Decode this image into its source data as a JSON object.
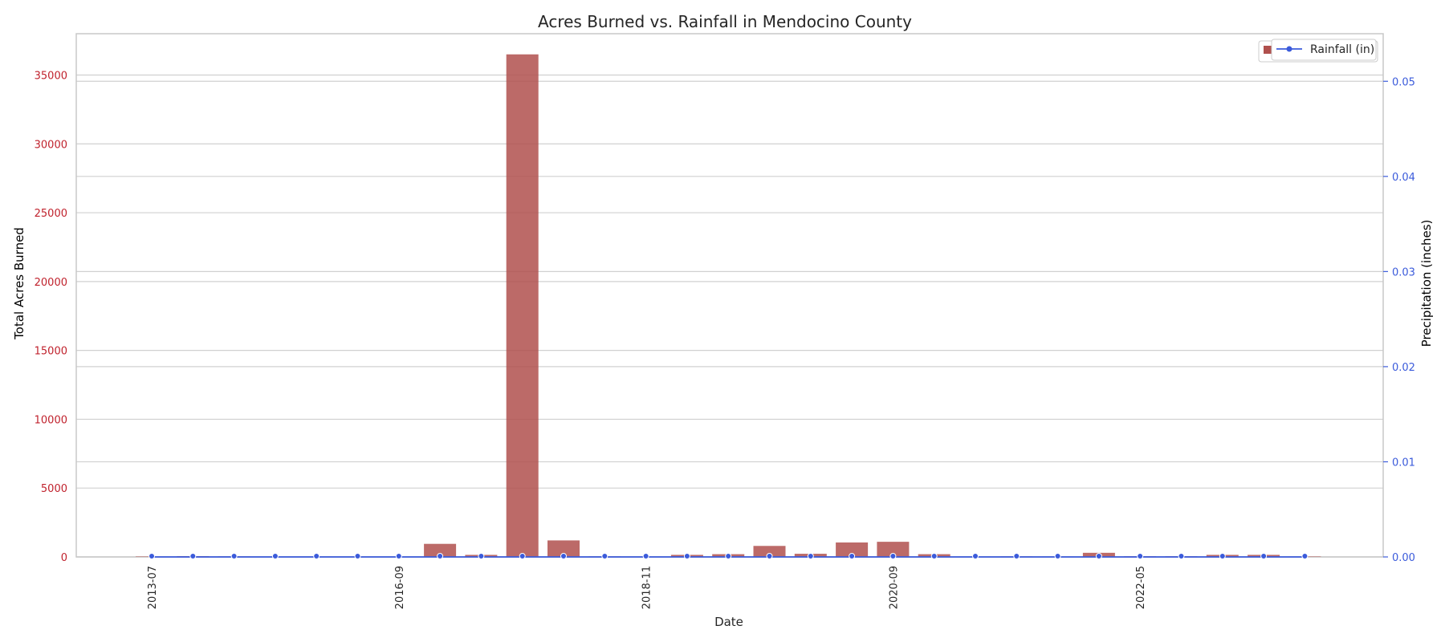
{
  "chart_data": {
    "type": "bar",
    "title": "Acres Burned vs. Rainfall in Mendocino County",
    "xlabel": "Date",
    "y_left_label": "Total Acres Burned",
    "y_right_label": "Precipitation (inches)",
    "colors": {
      "bars": "#b0504d",
      "line": "#3b5bdb",
      "left_axis": "#c0222d",
      "right_axis": "#3b5bdb",
      "grid": "#d0d0d0"
    },
    "grid": true,
    "legend_placement": "top-right",
    "y_left_ticks": [
      0,
      5000,
      10000,
      15000,
      20000,
      25000,
      30000,
      35000
    ],
    "y_left_lim": [
      0,
      38000
    ],
    "y_right_ticks": [
      0.0,
      0.01,
      0.02,
      0.03,
      0.04,
      0.05
    ],
    "y_right_tick_labels": [
      "0.00",
      "0.01",
      "0.02",
      "0.03",
      "0.04",
      "0.05"
    ],
    "y_right_lim": [
      0,
      0.055
    ],
    "x_tick_labels": [
      {
        "index": 0,
        "label": "2013-07"
      },
      {
        "index": 6,
        "label": "2016-09"
      },
      {
        "index": 12,
        "label": "2018-11"
      },
      {
        "index": 18,
        "label": "2020-09"
      },
      {
        "index": 24,
        "label": "2022-05"
      }
    ],
    "categories": [
      "c0",
      "c1",
      "c2",
      "c3",
      "c4",
      "c5",
      "c6",
      "c7",
      "c8",
      "c9",
      "c10",
      "c11",
      "c12",
      "c13",
      "c14",
      "c15",
      "c16",
      "c17",
      "c18",
      "c19",
      "c20",
      "c21",
      "c22",
      "c23",
      "c24",
      "c25",
      "c26",
      "c27",
      "c28"
    ],
    "series": [
      {
        "name": "",
        "kind": "bar",
        "axis": "left",
        "values": [
          30,
          60,
          40,
          20,
          30,
          20,
          20,
          950,
          150,
          36500,
          1200,
          40,
          30,
          150,
          200,
          800,
          230,
          1050,
          1100,
          200,
          30,
          40,
          30,
          300,
          50,
          50,
          150,
          150,
          30
        ]
      },
      {
        "name": "Rainfall (in)",
        "kind": "line",
        "axis": "right",
        "values": [
          0,
          0,
          0,
          0,
          0,
          0,
          0,
          0,
          0,
          0,
          0,
          0,
          0,
          0,
          0,
          0,
          0,
          0,
          0,
          0,
          0,
          0,
          0,
          0,
          0,
          0,
          0,
          0,
          0
        ]
      }
    ]
  }
}
